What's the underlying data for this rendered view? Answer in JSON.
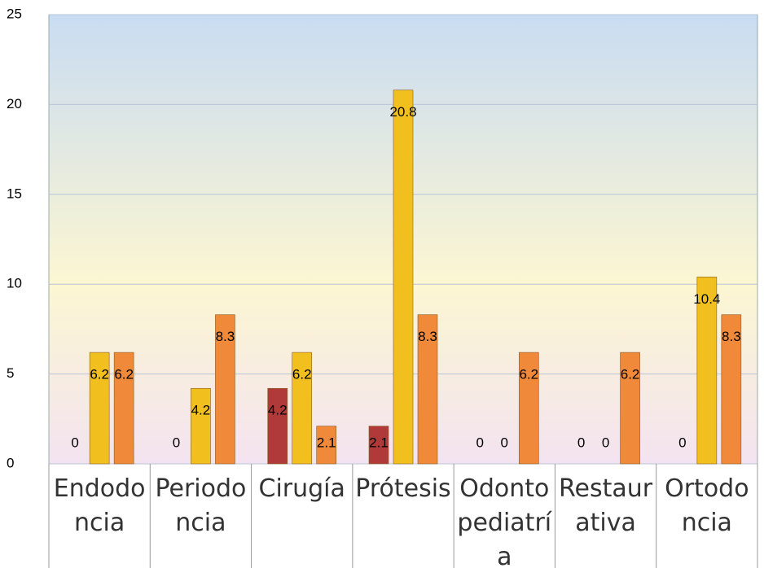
{
  "chart_data": {
    "type": "bar",
    "categories": [
      "Endodoncia",
      "Periodoncia",
      "Cirugía",
      "Prótesis",
      "Odontopediatría",
      "Restaurativa",
      "Ortodoncia"
    ],
    "series": [
      {
        "color": "#b03a3a",
        "values": [
          0,
          0,
          4.2,
          2.1,
          0,
          0,
          0
        ]
      },
      {
        "color": "#f2c01e",
        "values": [
          6.2,
          4.2,
          6.2,
          20.8,
          0,
          0,
          10.4
        ]
      },
      {
        "color": "#f08a3a",
        "values": [
          6.2,
          8.3,
          2.1,
          8.3,
          6.2,
          6.2,
          8.3
        ]
      }
    ],
    "ylim": [
      0,
      25
    ],
    "yticks": [
      0,
      5,
      10,
      15,
      20,
      25
    ],
    "grid": true
  }
}
